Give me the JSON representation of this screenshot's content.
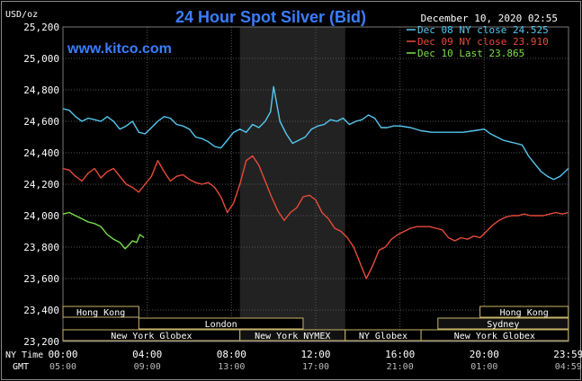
{
  "chart_data": {
    "type": "line",
    "title": "24 Hour Spot Silver (Bid)",
    "watermark": "www.kitco.com",
    "timestamp": "December 10, 2020 02:55",
    "ylabel": "USD/oz",
    "ylim": [
      23.2,
      25.2
    ],
    "yticks": [
      "25,200",
      "25,000",
      "24,800",
      "24,600",
      "24,400",
      "24,200",
      "24,000",
      "23,800",
      "23,600",
      "23,400",
      "23,200"
    ],
    "xlim": [
      0,
      24
    ],
    "x_row_label": "NY Time",
    "x_ticks": [
      "00:00",
      "04:00",
      "08:00",
      "12:00",
      "16:00",
      "20:00",
      "23:59"
    ],
    "gmt_row_label": "GMT",
    "gmt_ticks": [
      "05:00",
      "09:00",
      "13:00",
      "17:00",
      "21:00",
      "01:00",
      "04:59"
    ],
    "grid": true,
    "background": "#000000",
    "grid_color": "#555555",
    "shaded_band": {
      "x": [
        8.4,
        13.4
      ],
      "color": "#222222"
    },
    "legend_position": "top-right",
    "series": [
      {
        "name": "Dec 08 NY close 24.525",
        "color": "#55c8f0",
        "x": [
          0,
          0.3,
          0.6,
          0.9,
          1.2,
          1.5,
          1.8,
          2.1,
          2.4,
          2.7,
          3.0,
          3.3,
          3.6,
          3.9,
          4.2,
          4.5,
          4.8,
          5.1,
          5.4,
          5.7,
          6.0,
          6.3,
          6.6,
          6.9,
          7.2,
          7.5,
          7.8,
          8.1,
          8.4,
          8.7,
          9.0,
          9.3,
          9.6,
          9.85,
          10.0,
          10.3,
          10.6,
          10.9,
          11.2,
          11.5,
          11.8,
          12.1,
          12.4,
          12.7,
          13.0,
          13.3,
          13.6,
          13.9,
          14.2,
          14.5,
          14.8,
          15.1,
          15.4,
          15.7,
          16.0,
          16.5,
          17.0,
          17.5,
          18.0,
          18.5,
          19.0,
          19.5,
          20.0,
          20.3,
          20.6,
          20.9,
          21.2,
          21.5,
          21.8,
          22.1,
          22.4,
          22.7,
          23.0,
          23.3,
          23.6,
          23.99
        ],
        "y": [
          24.68,
          24.67,
          24.63,
          24.6,
          24.62,
          24.61,
          24.6,
          24.63,
          24.6,
          24.55,
          24.57,
          24.6,
          24.53,
          24.52,
          24.56,
          24.6,
          24.63,
          24.62,
          24.58,
          24.57,
          24.55,
          24.5,
          24.49,
          24.47,
          24.44,
          24.43,
          24.48,
          24.53,
          24.55,
          24.53,
          24.58,
          24.56,
          24.6,
          24.66,
          24.82,
          24.6,
          24.52,
          24.46,
          24.48,
          24.5,
          24.55,
          24.57,
          24.58,
          24.61,
          24.6,
          24.62,
          24.58,
          24.6,
          24.61,
          24.64,
          24.62,
          24.56,
          24.56,
          24.57,
          24.57,
          24.56,
          24.54,
          24.53,
          24.53,
          24.53,
          24.53,
          24.54,
          24.55,
          24.52,
          24.5,
          24.48,
          24.47,
          24.46,
          24.45,
          24.38,
          24.33,
          24.28,
          24.25,
          24.23,
          24.25,
          24.3
        ]
      },
      {
        "name": "Dec 09 NY close 23.910",
        "color": "#e84a3a",
        "x": [
          0,
          0.3,
          0.6,
          0.9,
          1.2,
          1.5,
          1.8,
          2.1,
          2.4,
          2.7,
          3.0,
          3.3,
          3.6,
          3.9,
          4.2,
          4.5,
          4.8,
          5.1,
          5.4,
          5.7,
          6.0,
          6.3,
          6.6,
          6.9,
          7.2,
          7.5,
          7.8,
          8.1,
          8.4,
          8.7,
          9.0,
          9.3,
          9.6,
          9.9,
          10.2,
          10.5,
          10.8,
          11.1,
          11.4,
          11.7,
          12.0,
          12.3,
          12.6,
          12.9,
          13.2,
          13.5,
          13.8,
          14.1,
          14.4,
          14.7,
          15.0,
          15.3,
          15.6,
          15.9,
          16.2,
          16.5,
          16.8,
          17.1,
          17.4,
          17.7,
          18.0,
          18.3,
          18.6,
          18.9,
          19.2,
          19.5,
          19.8,
          20.1,
          20.4,
          20.7,
          21.0,
          21.3,
          21.6,
          21.9,
          22.2,
          22.5,
          22.8,
          23.1,
          23.4,
          23.7,
          23.99
        ],
        "y": [
          24.3,
          24.29,
          24.25,
          24.22,
          24.27,
          24.3,
          24.24,
          24.28,
          24.3,
          24.25,
          24.2,
          24.18,
          24.15,
          24.2,
          24.25,
          24.35,
          24.28,
          24.22,
          24.25,
          24.26,
          24.23,
          24.21,
          24.2,
          24.21,
          24.18,
          24.12,
          24.02,
          24.08,
          24.2,
          24.35,
          24.38,
          24.32,
          24.22,
          24.12,
          24.03,
          23.97,
          24.02,
          24.05,
          24.12,
          24.13,
          24.1,
          24.02,
          23.98,
          23.92,
          23.9,
          23.86,
          23.8,
          23.7,
          23.6,
          23.68,
          23.78,
          23.8,
          23.85,
          23.88,
          23.9,
          23.92,
          23.93,
          23.93,
          23.93,
          23.92,
          23.91,
          23.86,
          23.84,
          23.86,
          23.85,
          23.87,
          23.86,
          23.9,
          23.94,
          23.97,
          23.99,
          24.0,
          24.0,
          24.01,
          24.0,
          24.0,
          24.0,
          24.01,
          24.02,
          24.01,
          24.02
        ]
      },
      {
        "name": "Dec 10 Last 23.865",
        "color": "#7ae04a",
        "x": [
          0,
          0.3,
          0.6,
          0.9,
          1.2,
          1.5,
          1.8,
          2.1,
          2.4,
          2.7,
          2.95,
          3.1,
          3.3,
          3.5,
          3.65,
          3.85
        ],
        "y": [
          24.01,
          24.02,
          24.0,
          23.98,
          23.96,
          23.95,
          23.93,
          23.88,
          23.85,
          23.83,
          23.79,
          23.81,
          23.84,
          23.83,
          23.88,
          23.86
        ]
      }
    ],
    "market_sessions": [
      {
        "name": "Hong Kong",
        "x": [
          0.0,
          3.6
        ],
        "row": 0,
        "active": true
      },
      {
        "name": "Hong Kong",
        "x": [
          19.8,
          23.99
        ],
        "row": 0,
        "active": true
      },
      {
        "name": "London",
        "x": [
          3.6,
          11.4
        ],
        "row": 1,
        "active": true
      },
      {
        "name": "Sydney",
        "x": [
          17.8,
          23.99
        ],
        "row": 1,
        "active": false
      },
      {
        "name": "New York Globex",
        "x": [
          0.0,
          8.4
        ],
        "row": 2,
        "active": true
      },
      {
        "name": "New York NYMEX",
        "x": [
          8.4,
          13.4
        ],
        "row": 2,
        "active": false
      },
      {
        "name": "NY Globex",
        "x": [
          13.4,
          17.0
        ],
        "row": 2,
        "active": true
      },
      {
        "name": "New York Globex",
        "x": [
          17.0,
          23.99
        ],
        "row": 2,
        "active": true
      }
    ],
    "colors": {
      "title": "#3b7dff",
      "watermark": "#3b7dff",
      "label_text": "#ffffff",
      "session_border": "#c8b56a",
      "session_inactive_text": "#ffffff",
      "session_active_text": "#ffffff",
      "axis_text": "#ffffff"
    }
  }
}
